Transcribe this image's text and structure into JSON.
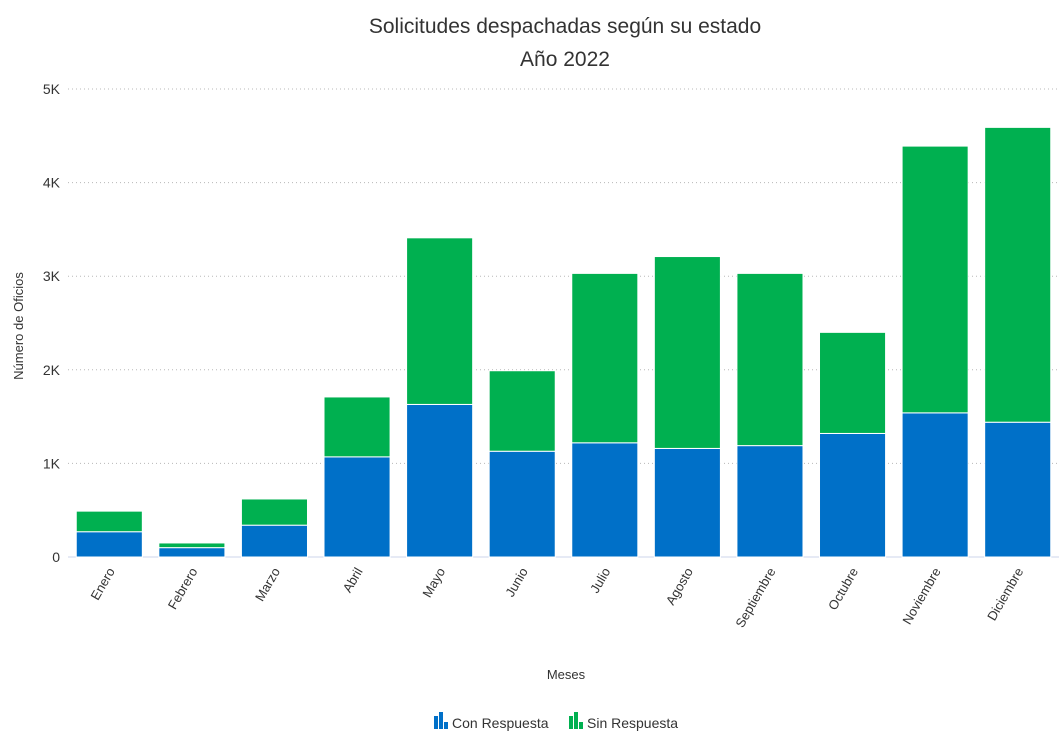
{
  "chart_data": {
    "type": "bar",
    "stacked": true,
    "title": [
      "Solicitudes despachadas según su estado",
      "Año 2022"
    ],
    "xlabel": "Meses",
    "ylabel": "Número de Oficios",
    "ylim": [
      0,
      5000
    ],
    "yticks": [
      {
        "value": 0,
        "label": "0"
      },
      {
        "value": 1000,
        "label": "1K"
      },
      {
        "value": 2000,
        "label": "2K"
      },
      {
        "value": 3000,
        "label": "3K"
      },
      {
        "value": 4000,
        "label": "4K"
      },
      {
        "value": 5000,
        "label": "5K"
      }
    ],
    "grid": true,
    "legend_position": "bottom-center",
    "categories": [
      "Enero",
      "Febrero",
      "Marzo",
      "Abril",
      "Mayo",
      "Junio",
      "Julio",
      "Agosto",
      "Septiembre",
      "Octubre",
      "Noviembre",
      "Diciembre"
    ],
    "series": [
      {
        "name": "Con Respuesta",
        "color": "#0070c8",
        "values": [
          270,
          100,
          340,
          1070,
          1630,
          1130,
          1220,
          1160,
          1190,
          1320,
          1540,
          1440
        ]
      },
      {
        "name": "Sin Respuesta",
        "color": "#00b050",
        "values": [
          220,
          50,
          280,
          640,
          1780,
          860,
          1810,
          2050,
          1840,
          1080,
          2850,
          3150
        ]
      }
    ]
  }
}
